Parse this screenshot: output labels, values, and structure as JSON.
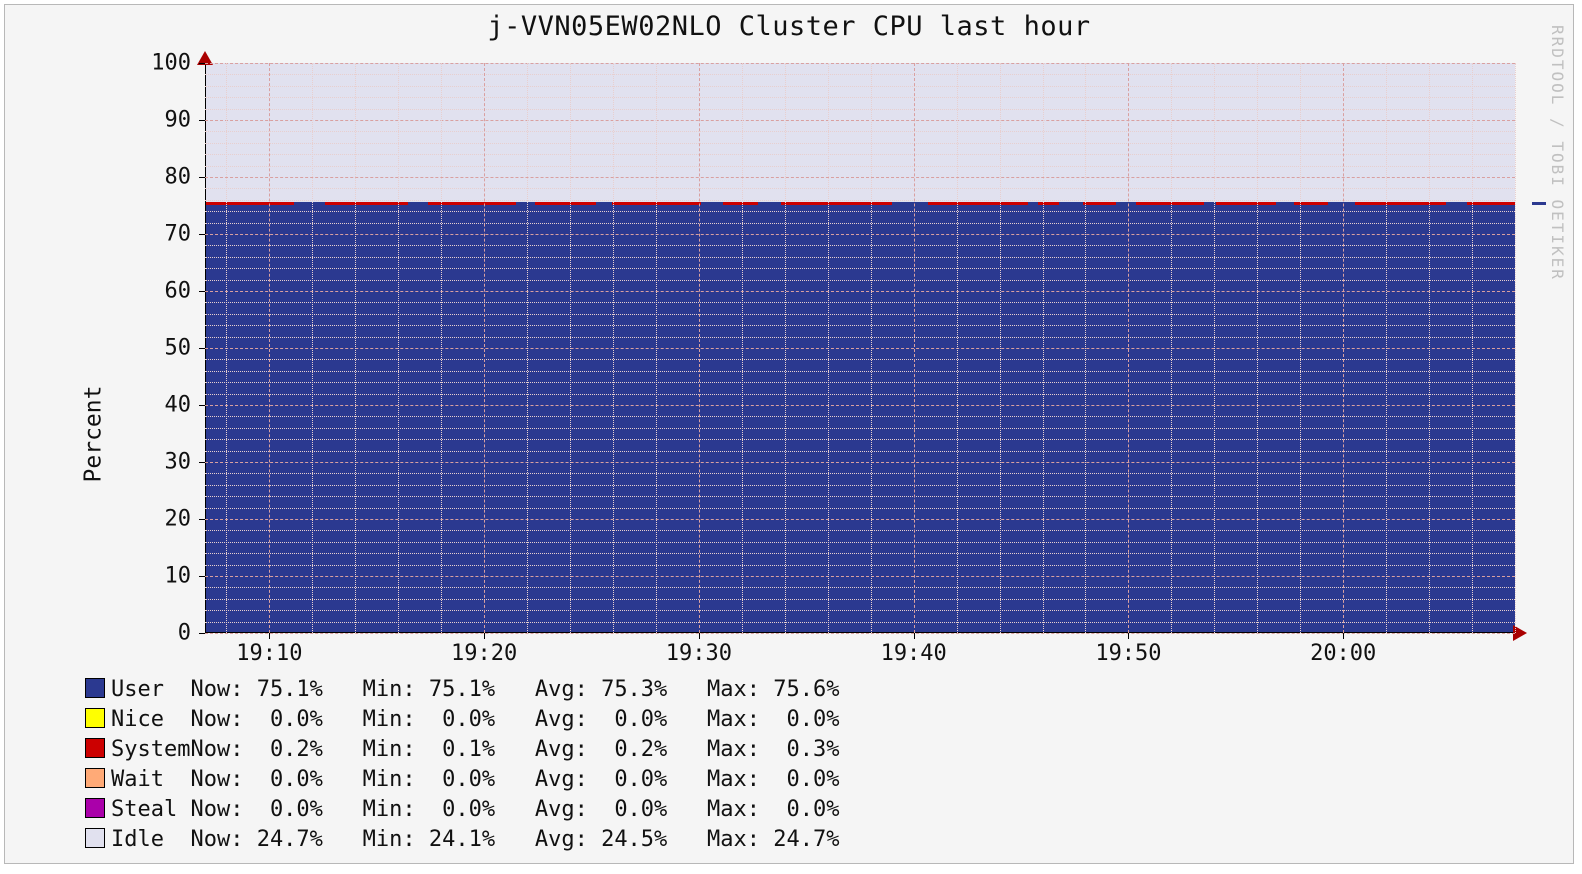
{
  "title": "j-VVN05EW02NLO Cluster CPU last hour",
  "ylabel": "Percent",
  "watermark": "RRDTOOL / TOBI OETIKER",
  "chart": {
    "type": "stacked-area",
    "background_color": "#f5f5f5",
    "idle_color": "#e1e1ef",
    "user_color": "#2b3990",
    "system_color": "#cc0000",
    "nice_color": "#ffff00",
    "wait_color": "#ffaa77",
    "steal_color": "#aa00aa",
    "grid_major_color": "#d9a0a0",
    "grid_minor_color": "#e8cfcf",
    "arrow_color": "#aa0000",
    "ylim": [
      0,
      100
    ],
    "ytick_major_step": 10,
    "ytick_minor_step": 2,
    "x_start_min": 547,
    "x_end_min": 608,
    "xtick_major_step_min": 10,
    "xtick_minor_step_min": 2,
    "xtick_labels": [
      "19:10",
      "19:20",
      "19:30",
      "19:40",
      "19:50",
      "20:00"
    ],
    "xtick_positions_min": [
      550,
      560,
      570,
      580,
      590,
      600
    ],
    "user_pct": 75.1,
    "system_pct": 0.2,
    "idle_top_pct": 100,
    "title_fontsize": 27,
    "tick_fontsize": 22,
    "legend_fontsize": 22
  },
  "legend": {
    "columns": [
      "Now",
      "Min",
      "Avg",
      "Max"
    ],
    "rows": [
      {
        "name": "User",
        "color": "#2b3990",
        "now": "75.1%",
        "min": "75.1%",
        "avg": "75.3%",
        "max": "75.6%"
      },
      {
        "name": "Nice",
        "color": "#ffff00",
        "now": "0.0%",
        "min": "0.0%",
        "avg": "0.0%",
        "max": "0.0%"
      },
      {
        "name": "System",
        "color": "#cc0000",
        "now": "0.2%",
        "min": "0.1%",
        "avg": "0.2%",
        "max": "0.3%"
      },
      {
        "name": "Wait",
        "color": "#ffaa77",
        "now": "0.0%",
        "min": "0.0%",
        "avg": "0.0%",
        "max": "0.0%"
      },
      {
        "name": "Steal",
        "color": "#aa00aa",
        "now": "0.0%",
        "min": "0.0%",
        "avg": "0.0%",
        "max": "0.0%"
      },
      {
        "name": "Idle",
        "color": "#e1e1ef",
        "now": "24.7%",
        "min": "24.1%",
        "avg": "24.5%",
        "max": "24.7%"
      }
    ]
  }
}
